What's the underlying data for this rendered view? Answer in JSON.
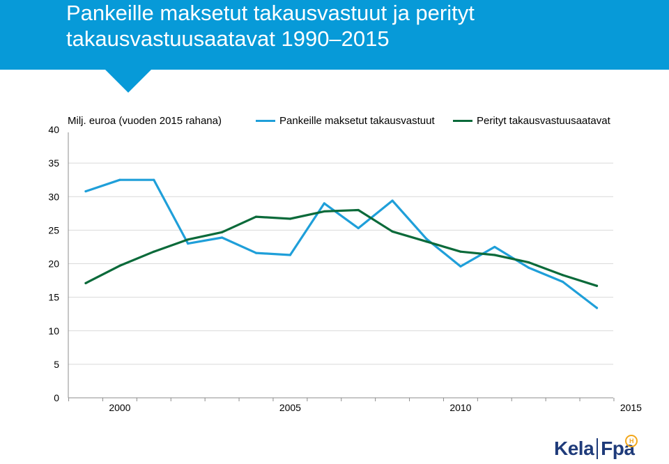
{
  "header": {
    "title_line1": "Pankeille maksetut takausvastuut ja perityt",
    "title_line2": "takausvastuusaatavat 1990–2015",
    "color": "#079ad8"
  },
  "logo": {
    "left": "Kela",
    "right": "Fpa",
    "badge": "H",
    "color": "#1f3b7a",
    "badge_color": "#f2a71b"
  },
  "chart_data": {
    "type": "line",
    "title": "Pankeille maksetut takausvastuut ja perityt takausvastuusaatavat 1990–2015",
    "unit_label": "Milj. euroa (vuoden 2015 rahana)",
    "ylim": [
      0,
      40
    ],
    "yticks": [
      "0",
      "5",
      "10",
      "15",
      "20",
      "25",
      "30",
      "35",
      "40"
    ],
    "xtick_labels": [
      "2000",
      "2005",
      "2010",
      "2015"
    ],
    "x": [
      1999,
      2000,
      2001,
      2002,
      2003,
      2004,
      2005,
      2006,
      2007,
      2008,
      2009,
      2010,
      2011,
      2012,
      2013,
      2014,
      2015
    ],
    "grid": true,
    "legend_position": "top",
    "series": [
      {
        "name": "Pankeille maksetut takausvastuut",
        "color": "#1f9fd9",
        "values": [
          30.8,
          32.5,
          32.5,
          23.0,
          23.9,
          21.6,
          21.3,
          29.0,
          25.3,
          29.4,
          23.7,
          19.6,
          22.5,
          19.4,
          17.3,
          13.4,
          null
        ]
      },
      {
        "name": "Perityt takausvastuusaatavat",
        "color": "#0b6a3a",
        "values": [
          17.1,
          19.7,
          21.8,
          23.6,
          24.7,
          27.0,
          26.7,
          27.8,
          28.0,
          24.8,
          23.3,
          21.8,
          21.3,
          20.2,
          18.3,
          16.7,
          null
        ]
      }
    ]
  }
}
